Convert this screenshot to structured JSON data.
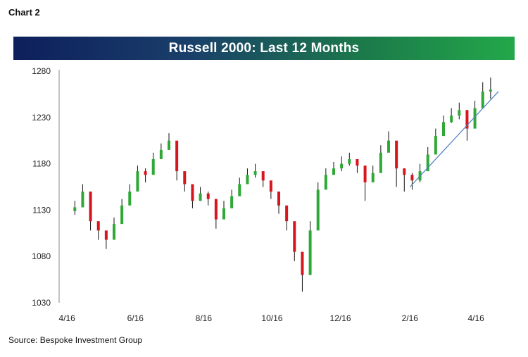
{
  "figure_label": "Chart 2",
  "source": "Source: Bespoke Investment Group",
  "colors": {
    "up": "#2fa836",
    "down": "#d8141f",
    "wick": "#111111",
    "trendline": "#4a7fc1",
    "title_gradient_start": "#0d1f5c",
    "title_gradient_end": "#23a84a"
  },
  "chart_data": {
    "type": "candlestick",
    "title": "Russell 2000: Last 12 Months",
    "xlabel": "",
    "ylabel": "",
    "ylim": [
      1030,
      1280
    ],
    "yticks": [
      1030,
      1080,
      1130,
      1180,
      1230,
      1280
    ],
    "xticks": [
      "4/16",
      "6/16",
      "8/16",
      "10/16",
      "12/16",
      "2/16",
      "4/16"
    ],
    "xtick_dates": [
      "2016-04-01",
      "2016-06-01",
      "2016-08-01",
      "2016-10-01",
      "2016-12-01",
      "2017-02-01",
      "2017-04-01"
    ],
    "grid": false,
    "legend": "none",
    "series": [
      {
        "x": [
          "2016-04-08",
          "2016-04-15",
          "2016-04-22",
          "2016-04-29",
          "2016-05-06",
          "2016-05-13",
          "2016-05-20",
          "2016-05-27",
          "2016-06-03",
          "2016-06-10",
          "2016-06-17",
          "2016-06-24",
          "2016-07-01",
          "2016-07-08",
          "2016-07-15",
          "2016-07-22",
          "2016-07-29",
          "2016-08-05",
          "2016-08-12",
          "2016-08-19",
          "2016-08-26",
          "2016-09-02",
          "2016-09-09",
          "2016-09-16",
          "2016-09-23",
          "2016-09-30",
          "2016-10-07",
          "2016-10-14",
          "2016-10-21",
          "2016-10-28",
          "2016-11-04",
          "2016-11-11",
          "2016-11-18",
          "2016-11-25",
          "2016-12-02",
          "2016-12-09",
          "2016-12-16",
          "2016-12-23",
          "2016-12-30",
          "2017-01-06",
          "2017-01-13",
          "2017-01-20",
          "2017-01-27",
          "2017-02-03",
          "2017-02-10",
          "2017-02-17",
          "2017-02-24",
          "2017-03-03",
          "2017-03-10",
          "2017-03-17",
          "2017-03-24",
          "2017-03-31",
          "2017-04-07",
          "2017-04-14"
        ],
        "close": [
          1133,
          1150,
          1118,
          1108,
          1098,
          1115,
          1135,
          1150,
          1172,
          1168,
          1185,
          1195,
          1205,
          1172,
          1158,
          1140,
          1148,
          1142,
          1120,
          1132,
          1145,
          1158,
          1168,
          1172,
          1162,
          1150,
          1135,
          1118,
          1085,
          1060,
          1108,
          1152,
          1168,
          1175,
          1180,
          1185,
          1178,
          1160,
          1170,
          1192,
          1205,
          1175,
          1168,
          1162,
          1172,
          1190,
          1210,
          1225,
          1232,
          1238,
          1218,
          1240,
          1258,
          1260
        ],
        "high": [
          1140,
          1158,
          1125,
          1115,
          1105,
          1122,
          1142,
          1158,
          1178,
          1175,
          1192,
          1202,
          1213,
          1180,
          1165,
          1148,
          1155,
          1150,
          1128,
          1140,
          1152,
          1165,
          1175,
          1180,
          1170,
          1158,
          1142,
          1125,
          1095,
          1068,
          1118,
          1160,
          1175,
          1182,
          1188,
          1192,
          1185,
          1168,
          1178,
          1200,
          1215,
          1182,
          1175,
          1170,
          1180,
          1198,
          1218,
          1232,
          1240,
          1246,
          1226,
          1248,
          1268,
          1273
        ],
        "low": [
          1125,
          1140,
          1108,
          1098,
          1088,
          1105,
          1128,
          1142,
          1163,
          1160,
          1178,
          1185,
          1195,
          1162,
          1150,
          1132,
          1140,
          1135,
          1110,
          1120,
          1138,
          1150,
          1160,
          1165,
          1155,
          1142,
          1126,
          1108,
          1075,
          1042,
          1095,
          1140,
          1160,
          1168,
          1172,
          1178,
          1170,
          1140,
          1162,
          1185,
          1195,
          1155,
          1150,
          1152,
          1160,
          1182,
          1202,
          1216,
          1224,
          1228,
          1205,
          1230,
          1250,
          1250
        ]
      }
    ],
    "trendline": {
      "x": [
        "2017-02-01",
        "2017-04-21"
      ],
      "y": [
        1155,
        1258
      ]
    }
  }
}
